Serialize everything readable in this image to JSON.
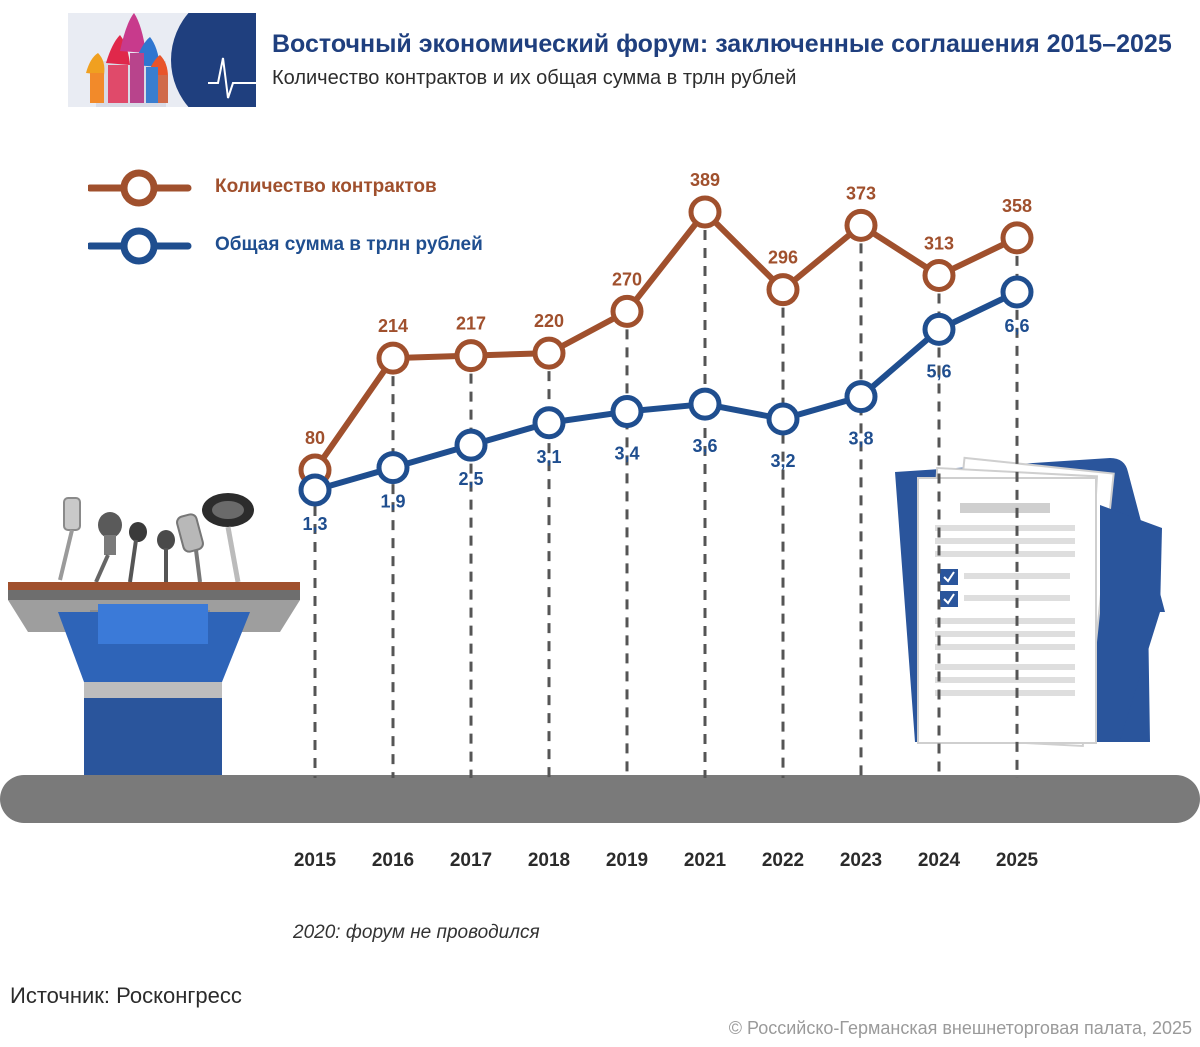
{
  "header": {
    "title": "Восточный экономический форум: заключенные соглашения 2015–2025",
    "subtitle": "Количество контрактов и их общая сумма в трлн рублей"
  },
  "legend": {
    "contracts_label": "Количество контрактов",
    "sum_label": "Общая сумма в трлн рублей"
  },
  "colors": {
    "contracts": "#a0502d",
    "sum": "#1f4e8f",
    "title": "#1f3f7e",
    "ground": "#7a7a7a"
  },
  "chart_data": {
    "type": "line",
    "title": "Восточный экономический форум: заключенные соглашения 2015–2025",
    "subtitle": "Количество контрактов и их общая сумма в трлн рублей",
    "categories": [
      "2015",
      "2016",
      "2017",
      "2018",
      "2019",
      "2021",
      "2022",
      "2023",
      "2024",
      "2025"
    ],
    "series": [
      {
        "name": "Количество контрактов",
        "values": [
          80,
          214,
          217,
          220,
          270,
          389,
          296,
          373,
          313,
          358
        ],
        "labels": [
          "80",
          "214",
          "217",
          "220",
          "270",
          "389",
          "296",
          "373",
          "313",
          "358"
        ]
      },
      {
        "name": "Общая сумма в трлн рублей",
        "values": [
          1.3,
          1.9,
          2.5,
          3.1,
          3.4,
          3.6,
          3.2,
          3.8,
          5.6,
          6.6
        ],
        "labels": [
          "1,3",
          "1,9",
          "2,5",
          "3,1",
          "3,4",
          "3,6",
          "3,2",
          "3,8",
          "5,6",
          "6,6"
        ]
      }
    ],
    "grid": false,
    "legend_position": "top-left"
  },
  "footer": {
    "note": "2020: форум не проводился",
    "source": "Источник: Росконгресс",
    "copyright": "© Российско-Германская внешнеторговая палата, 2025"
  }
}
